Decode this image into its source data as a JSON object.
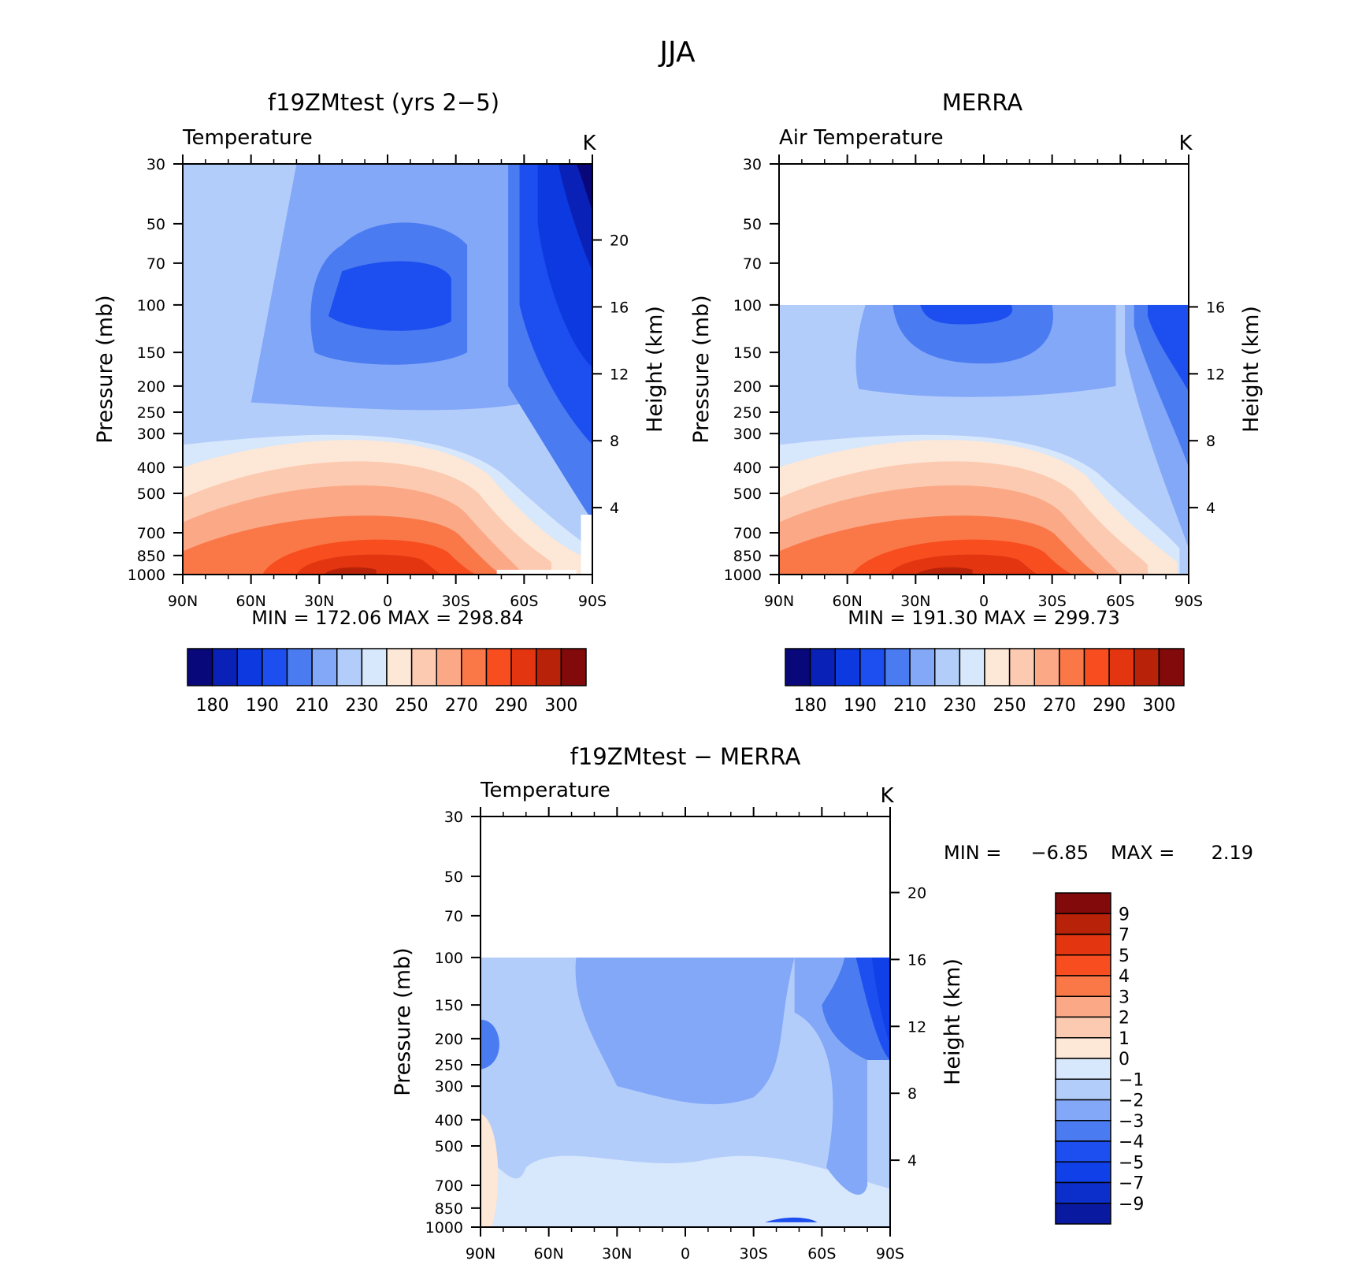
{
  "figure_title": "JJA",
  "colors": {
    "warm_cool_18": [
      "#08087a",
      "#0a21b8",
      "#0c3ae0",
      "#1d4ff0",
      "#4a7bf0",
      "#84a8f8",
      "#b3cdfb",
      "#d7e7fc",
      "#fde7d6",
      "#fccab0",
      "#fba886",
      "#fa7848",
      "#f84d1f",
      "#e23510",
      "#b82208",
      "#820a0a"
    ],
    "diff_16": [
      "#0a1aa0",
      "#0c2fcc",
      "#1040e8",
      "#1d4ff0",
      "#4a7bf0",
      "#84a8f8",
      "#b3cdfb",
      "#d7e7fc",
      "#fde7d6",
      "#fccab0",
      "#fba886",
      "#fa7848",
      "#f84d1f",
      "#e23510",
      "#b82208",
      "#820a0a"
    ]
  },
  "chart_data": [
    {
      "type": "contour",
      "title": "f19ZMtest (yrs 2−5)",
      "left_label": "Temperature",
      "units": "K",
      "xlabel": "",
      "ylabel": "Pressure (mb)",
      "y2label": "Height (km)",
      "x_ticks": [
        "90N",
        "60N",
        "30N",
        "0",
        "30S",
        "60S",
        "90S"
      ],
      "y_ticks": [
        30,
        50,
        70,
        100,
        150,
        200,
        250,
        300,
        400,
        500,
        700,
        850,
        1000
      ],
      "y2_ticks": [
        20,
        16,
        12,
        8,
        4
      ],
      "stats": "MIN =  172.06   MAX =  298.84",
      "min": 172.06,
      "max": 298.84,
      "colorbar_labels": [
        "180",
        "190",
        "210",
        "230",
        "250",
        "270",
        "290",
        "300"
      ],
      "data_top_pressure": 30
    },
    {
      "type": "contour",
      "title": "MERRA",
      "left_label": "Air Temperature",
      "units": "K",
      "xlabel": "",
      "ylabel": "Pressure (mb)",
      "y2label": "Height (km)",
      "x_ticks": [
        "90N",
        "60N",
        "30N",
        "0",
        "30S",
        "60S",
        "90S"
      ],
      "y_ticks": [
        30,
        50,
        70,
        100,
        150,
        200,
        250,
        300,
        400,
        500,
        700,
        850,
        1000
      ],
      "y2_ticks": [
        16,
        12,
        8,
        4
      ],
      "stats": "MIN =  191.30   MAX =  299.73",
      "min": 191.3,
      "max": 299.73,
      "colorbar_labels": [
        "180",
        "190",
        "210",
        "230",
        "250",
        "270",
        "290",
        "300"
      ],
      "data_top_pressure": 100
    },
    {
      "type": "contour",
      "title": "f19ZMtest − MERRA",
      "left_label": "Temperature",
      "units": "K",
      "xlabel": "",
      "ylabel": "Pressure (mb)",
      "y2label": "Height (km)",
      "x_ticks": [
        "90N",
        "60N",
        "30N",
        "0",
        "30S",
        "60S",
        "90S"
      ],
      "y_ticks": [
        30,
        50,
        70,
        100,
        150,
        200,
        250,
        300,
        400,
        500,
        700,
        850,
        1000
      ],
      "y2_ticks": [
        20,
        16,
        12,
        8,
        4
      ],
      "stats_min_label": "MIN =",
      "stats_min_value": "−6.85",
      "stats_max_label": "MAX =",
      "stats_max_value": "2.19",
      "min": -6.85,
      "max": 2.19,
      "colorbar_labels": [
        "9",
        "7",
        "5",
        "4",
        "3",
        "2",
        "1",
        "0",
        "−1",
        "−2",
        "−3",
        "−4",
        "−5",
        "−7",
        "−9"
      ],
      "data_top_pressure": 100
    }
  ]
}
